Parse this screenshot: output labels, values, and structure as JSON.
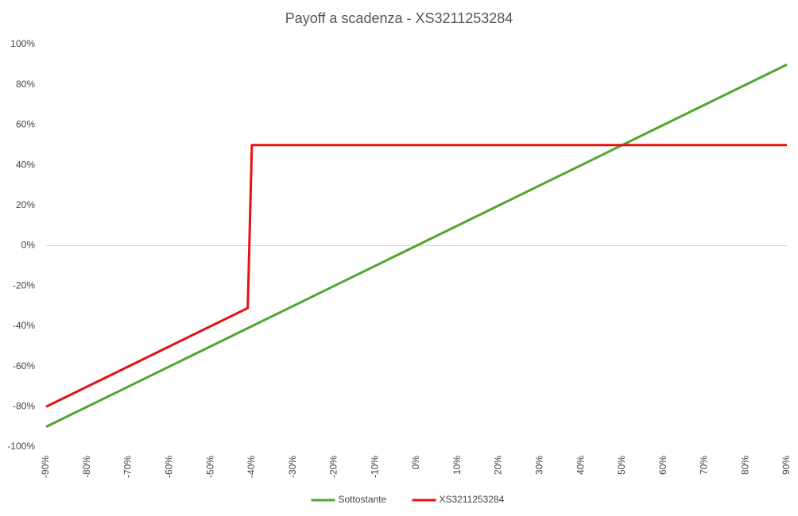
{
  "chart_data": {
    "type": "line",
    "title": "Payoff a scadenza - XS3211253284",
    "xlim": [
      -90,
      90
    ],
    "xticks": [
      {
        "value": -90,
        "label": "-90%"
      },
      {
        "value": -80,
        "label": "-80%"
      },
      {
        "value": -70,
        "label": "-70%"
      },
      {
        "value": -60,
        "label": "-60%"
      },
      {
        "value": -50,
        "label": "-50%"
      },
      {
        "value": -40,
        "label": "-40%"
      },
      {
        "value": -30,
        "label": "-30%"
      },
      {
        "value": -20,
        "label": "-20%"
      },
      {
        "value": -10,
        "label": "-10%"
      },
      {
        "value": 0,
        "label": "0%"
      },
      {
        "value": 10,
        "label": "10%"
      },
      {
        "value": 20,
        "label": "20%"
      },
      {
        "value": 30,
        "label": "30%"
      },
      {
        "value": 40,
        "label": "40%"
      },
      {
        "value": 50,
        "label": "50%"
      },
      {
        "value": 60,
        "label": "60%"
      },
      {
        "value": 70,
        "label": "70%"
      },
      {
        "value": 80,
        "label": "80%"
      },
      {
        "value": 90,
        "label": "90%"
      }
    ],
    "ylim": [
      -100,
      100
    ],
    "yticks": [
      {
        "value": 100,
        "label": "100%"
      },
      {
        "value": 80,
        "label": "80%"
      },
      {
        "value": 60,
        "label": "60%"
      },
      {
        "value": 40,
        "label": "40%"
      },
      {
        "value": 20,
        "label": "20%"
      },
      {
        "value": 0,
        "label": "0%"
      },
      {
        "value": -20,
        "label": "-20%"
      },
      {
        "value": -40,
        "label": "-40%"
      },
      {
        "value": -60,
        "label": "-60%"
      },
      {
        "value": -80,
        "label": "-80%"
      },
      {
        "value": -100,
        "label": "-100%"
      }
    ],
    "legend": "bottom",
    "series": [
      {
        "name": "Sottostante",
        "color": "#4ea72e",
        "x": [
          -90,
          90
        ],
        "values": [
          -90,
          90
        ]
      },
      {
        "name": "XS3211253284",
        "color": "#e81010",
        "x": [
          -90,
          -41,
          -40,
          90
        ],
        "values": [
          -80,
          -31,
          50,
          50
        ]
      }
    ]
  }
}
